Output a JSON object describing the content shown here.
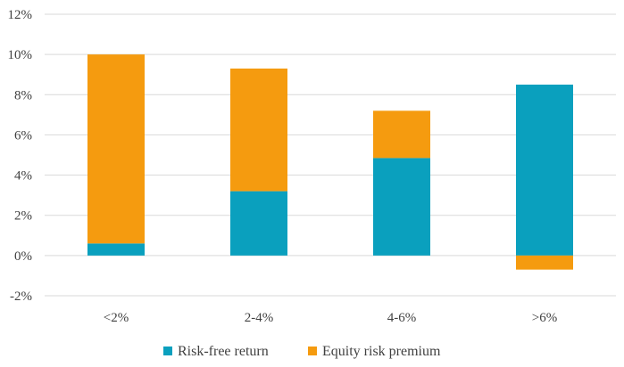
{
  "chart_data": {
    "type": "bar",
    "stacked": true,
    "categories": [
      "<2%",
      "2-4%",
      "4-6%",
      ">6%"
    ],
    "series": [
      {
        "name": "Risk-free return",
        "color": "#0aa0be",
        "values": [
          0.6,
          3.2,
          4.85,
          8.5
        ]
      },
      {
        "name": "Equity risk premium",
        "color": "#f59b0f",
        "values": [
          9.4,
          6.1,
          2.35,
          -0.7
        ]
      }
    ],
    "yticks": [
      "-2%",
      "0%",
      "2%",
      "4%",
      "6%",
      "8%",
      "10%",
      "12%"
    ],
    "ylim": [
      -2,
      12
    ],
    "grid": true,
    "legend_position": "bottom"
  }
}
